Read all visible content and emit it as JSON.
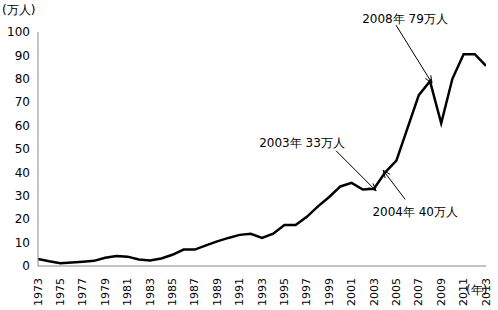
{
  "chart_data": {
    "type": "line",
    "y_label": "(万人)",
    "x_label": "(年)",
    "x": [
      1973,
      1974,
      1975,
      1976,
      1977,
      1978,
      1979,
      1980,
      1981,
      1982,
      1983,
      1984,
      1985,
      1986,
      1987,
      1988,
      1989,
      1990,
      1991,
      1992,
      1993,
      1994,
      1995,
      1996,
      1997,
      1998,
      1999,
      2000,
      2001,
      2002,
      2003,
      2004,
      2005,
      2006,
      2007,
      2008,
      2009,
      2010,
      2011,
      2012,
      2013
    ],
    "values": [
      3,
      2,
      1.2,
      1.5,
      1.8,
      2.2,
      3.5,
      4.3,
      4,
      2.8,
      2.4,
      3.2,
      4.8,
      7,
      7,
      8.8,
      10.5,
      12,
      13.3,
      13.8,
      12,
      13.8,
      17.5,
      17.5,
      21,
      25.5,
      29.5,
      34,
      35.5,
      32.7,
      33,
      40,
      45,
      59,
      73,
      79,
      61,
      80,
      90.5,
      90.5,
      85.5
    ],
    "color": "#000000",
    "xlim": [
      1973,
      2013
    ],
    "xticks": [
      1973,
      1975,
      1977,
      1979,
      1981,
      1983,
      1985,
      1987,
      1989,
      1991,
      1993,
      1995,
      1997,
      1999,
      2001,
      2003,
      2005,
      2007,
      2009,
      2011,
      2013
    ],
    "ylim": [
      0,
      100
    ],
    "yticks": [
      0,
      10,
      20,
      30,
      40,
      50,
      60,
      70,
      80,
      90,
      100
    ],
    "grid": false,
    "annotations": [
      {
        "text": "2003年 33万人",
        "x": 2003,
        "y": 33
      },
      {
        "text": "2004年 40万人",
        "x": 2004,
        "y": 40
      },
      {
        "text": "2008年 79万人",
        "x": 2008,
        "y": 79
      }
    ]
  }
}
